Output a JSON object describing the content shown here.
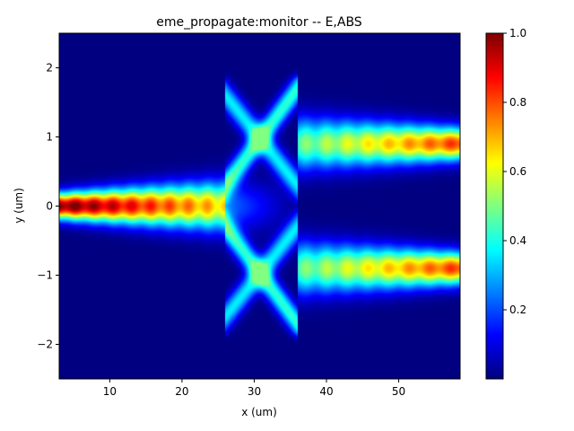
{
  "chart_data": {
    "type": "heatmap",
    "title": "eme_propagate:monitor -- E,ABS",
    "xlabel": "x (um)",
    "ylabel": "y (um)",
    "xlim": [
      3,
      58.5
    ],
    "ylim": [
      -2.5,
      2.5
    ],
    "x_ticks": [
      10,
      20,
      30,
      40,
      50
    ],
    "y_ticks": [
      -2,
      -1,
      0,
      1,
      2
    ],
    "x_tick_labels": [
      "10",
      "20",
      "30",
      "40",
      "50"
    ],
    "y_tick_labels": [
      "−2",
      "−1",
      "0",
      "1",
      "2"
    ],
    "colormap": "jet",
    "colorbar": {
      "range": [
        0,
        1
      ],
      "ticks": [
        0.2,
        0.4,
        0.6,
        0.8,
        1.0
      ],
      "tick_labels": [
        "0.2",
        "0.4",
        "0.6",
        "0.8",
        "1.0"
      ]
    },
    "field_description": {
      "input_waveguide": {
        "x_range": [
          3,
          26
        ],
        "y_center": 0,
        "peak": 1.0,
        "peak_x": 5
      },
      "mmi_section": {
        "x_range": [
          26,
          36
        ],
        "y_extent": [
          -1.8,
          1.8
        ]
      },
      "output_waveguides": [
        {
          "x_range": [
            36,
            58.5
          ],
          "y_center": 0.9,
          "peak": 0.82
        },
        {
          "x_range": [
            36,
            58.5
          ],
          "y_center": -0.9,
          "peak": 0.82
        }
      ]
    }
  }
}
